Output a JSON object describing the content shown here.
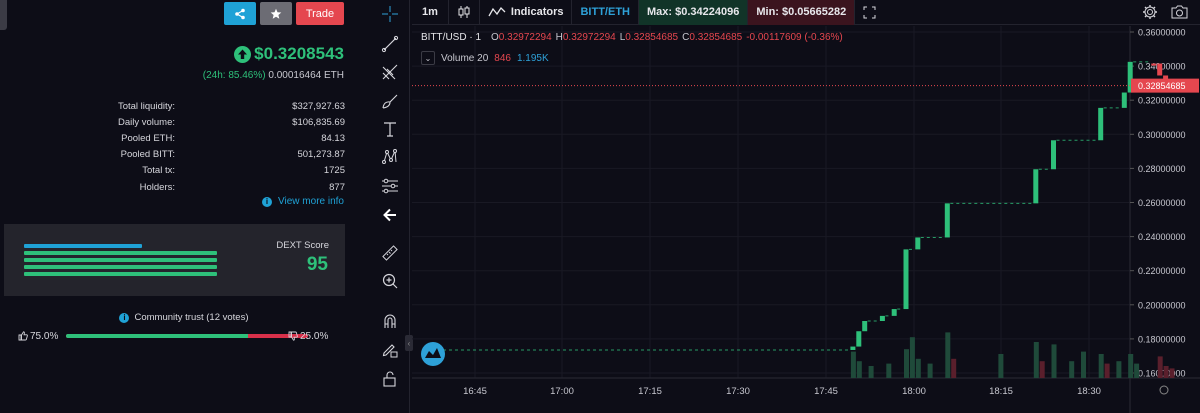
{
  "token_panel": {
    "trade_label": "Trade",
    "price": "$0.3208543",
    "change_24h": "(24h: 85.46%)",
    "eth_price": "0.00016464 ETH",
    "stats": [
      {
        "label": "Total liquidity:",
        "value": "$327,927.63"
      },
      {
        "label": "Daily volume:",
        "value": "$106,835.69"
      },
      {
        "label": "Pooled ETH:",
        "value": "84.13"
      },
      {
        "label": "Pooled BITT:",
        "value": "501,273.87"
      },
      {
        "label": "Total tx:",
        "value": "1725"
      },
      {
        "label": "Holders:",
        "value": "877"
      }
    ],
    "view_more": "View more info",
    "dext_label": "DEXT Score",
    "dext_score": "95",
    "score_bars": [
      0.51,
      0.83,
      0.83,
      0.83,
      0.83
    ],
    "trust_title": "Community trust (12 votes)",
    "trust_up": "75.0%",
    "trust_down": "25.0%",
    "trust_up_fraction": 0.75
  },
  "colors": {
    "up": "#2ec07a",
    "down": "#e5474f",
    "accent": "#1fa2d6",
    "bg": "#0d0d17"
  },
  "toolbar": {
    "interval": "1m",
    "indicators": "Indicators",
    "pair": "BITT/ETH",
    "max": "Max: $0.34224096",
    "min": "Min: $0.05665282"
  },
  "legend": {
    "symbol": "BITT/USD · 1",
    "o_label": "O",
    "o": "0.32972294",
    "h_label": "H",
    "h": "0.32972294",
    "l_label": "L",
    "l": "0.32854685",
    "c_label": "C",
    "c": "0.32854685",
    "change": "-0.00117609 (-0.36%)",
    "volume_label": "Volume 20",
    "volume_a": "846",
    "volume_b": "1.195K"
  },
  "chart_data": {
    "type": "candlestick",
    "y_ticks": [
      "0.36000000",
      "0.34000000",
      "0.32000000",
      "0.30000000",
      "0.28000000",
      "0.26000000",
      "0.24000000",
      "0.22000000",
      "0.20000000",
      "0.18000000",
      "0.16000000"
    ],
    "ylim": [
      0.155,
      0.362
    ],
    "x_ticks": [
      "16:45",
      "17:00",
      "17:15",
      "17:30",
      "17:45",
      "18:00",
      "18:15",
      "18:30"
    ],
    "last_price_label": "0.32854685",
    "last_price": 0.32854685,
    "candles": [
      {
        "t": 0,
        "o": 0.1735,
        "c": 0.1735,
        "up": true
      },
      {
        "t": 71,
        "o": 0.1735,
        "c": 0.1755,
        "up": true
      },
      {
        "t": 72,
        "o": 0.1755,
        "c": 0.1845,
        "up": true
      },
      {
        "t": 73,
        "o": 0.1845,
        "c": 0.1905,
        "up": true
      },
      {
        "t": 76,
        "o": 0.1905,
        "c": 0.1935,
        "up": true
      },
      {
        "t": 78,
        "o": 0.1935,
        "c": 0.1975,
        "up": true
      },
      {
        "t": 80,
        "o": 0.1975,
        "c": 0.2325,
        "up": true
      },
      {
        "t": 82,
        "o": 0.2325,
        "c": 0.2395,
        "up": true
      },
      {
        "t": 87,
        "o": 0.2395,
        "c": 0.2595,
        "up": true
      },
      {
        "t": 102,
        "o": 0.2595,
        "c": 0.2795,
        "up": true
      },
      {
        "t": 105,
        "o": 0.2795,
        "c": 0.2965,
        "up": true
      },
      {
        "t": 113,
        "o": 0.2965,
        "c": 0.3155,
        "up": true
      },
      {
        "t": 117,
        "o": 0.3155,
        "c": 0.3245,
        "up": true
      },
      {
        "t": 118,
        "o": 0.3245,
        "c": 0.3425,
        "up": true
      },
      {
        "t": 122,
        "o": 0.3415,
        "c": 0.3415,
        "up": false
      },
      {
        "t": 123,
        "o": 0.3415,
        "c": 0.3345,
        "up": false
      },
      {
        "t": 124,
        "o": 0.3345,
        "c": 0.3297,
        "up": false
      },
      {
        "t": 125,
        "o": 0.3297,
        "c": 0.3285,
        "up": false
      }
    ],
    "volumes": [
      {
        "t": 71,
        "v": 0.55,
        "up": true
      },
      {
        "t": 72,
        "v": 0.35,
        "up": true
      },
      {
        "t": 74,
        "v": 0.25,
        "up": true
      },
      {
        "t": 77,
        "v": 0.3,
        "up": true
      },
      {
        "t": 80,
        "v": 0.6,
        "up": true
      },
      {
        "t": 81,
        "v": 0.85,
        "up": true
      },
      {
        "t": 82,
        "v": 0.4,
        "up": true
      },
      {
        "t": 84,
        "v": 0.3,
        "up": true
      },
      {
        "t": 87,
        "v": 0.95,
        "up": true
      },
      {
        "t": 88,
        "v": 0.4,
        "up": false
      },
      {
        "t": 96,
        "v": 0.5,
        "up": true
      },
      {
        "t": 102,
        "v": 0.75,
        "up": true
      },
      {
        "t": 103,
        "v": 0.35,
        "up": false
      },
      {
        "t": 105,
        "v": 0.7,
        "up": true
      },
      {
        "t": 108,
        "v": 0.35,
        "up": true
      },
      {
        "t": 110,
        "v": 0.55,
        "up": true
      },
      {
        "t": 113,
        "v": 0.5,
        "up": true
      },
      {
        "t": 114,
        "v": 0.3,
        "up": false
      },
      {
        "t": 116,
        "v": 0.35,
        "up": true
      },
      {
        "t": 118,
        "v": 0.5,
        "up": true
      },
      {
        "t": 119,
        "v": 0.3,
        "up": true
      },
      {
        "t": 123,
        "v": 0.45,
        "up": false
      },
      {
        "t": 124,
        "v": 0.25,
        "up": false
      },
      {
        "t": 125,
        "v": 0.2,
        "up": false
      }
    ]
  }
}
